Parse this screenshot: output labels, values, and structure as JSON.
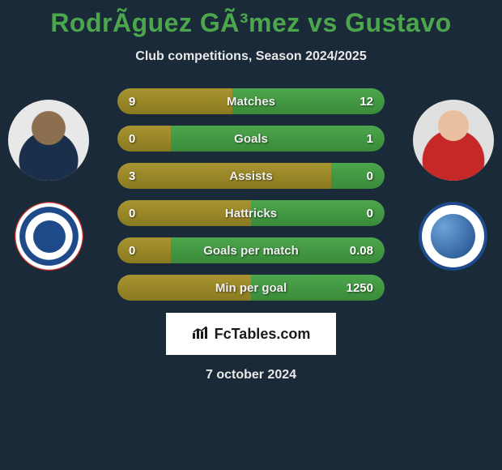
{
  "title": "RodrÃ­guez GÃ³mez vs Gustavo",
  "subtitle": "Club competitions, Season 2024/2025",
  "footer_date": "7 october 2024",
  "brand": "FcTables.com",
  "colors": {
    "background": "#1a2a38",
    "left_player": "#a89430",
    "right_player": "#4ca64c",
    "bar_bg_top": "#3a4a58",
    "bar_bg_bottom": "#2a3a48",
    "text": "#ffffff"
  },
  "stats": [
    {
      "label": "Matches",
      "left_value": "9",
      "right_value": "12",
      "left_pct": 43,
      "right_pct": 57
    },
    {
      "label": "Goals",
      "left_value": "0",
      "right_value": "1",
      "left_pct": 20,
      "right_pct": 80
    },
    {
      "label": "Assists",
      "left_value": "3",
      "right_value": "0",
      "left_pct": 80,
      "right_pct": 20
    },
    {
      "label": "Hattricks",
      "left_value": "0",
      "right_value": "0",
      "left_pct": 50,
      "right_pct": 50
    },
    {
      "label": "Goals per match",
      "left_value": "0",
      "right_value": "0.08",
      "left_pct": 20,
      "right_pct": 80
    },
    {
      "label": "Min per goal",
      "left_value": "",
      "right_value": "1250",
      "left_pct": 50,
      "right_pct": 50
    }
  ]
}
